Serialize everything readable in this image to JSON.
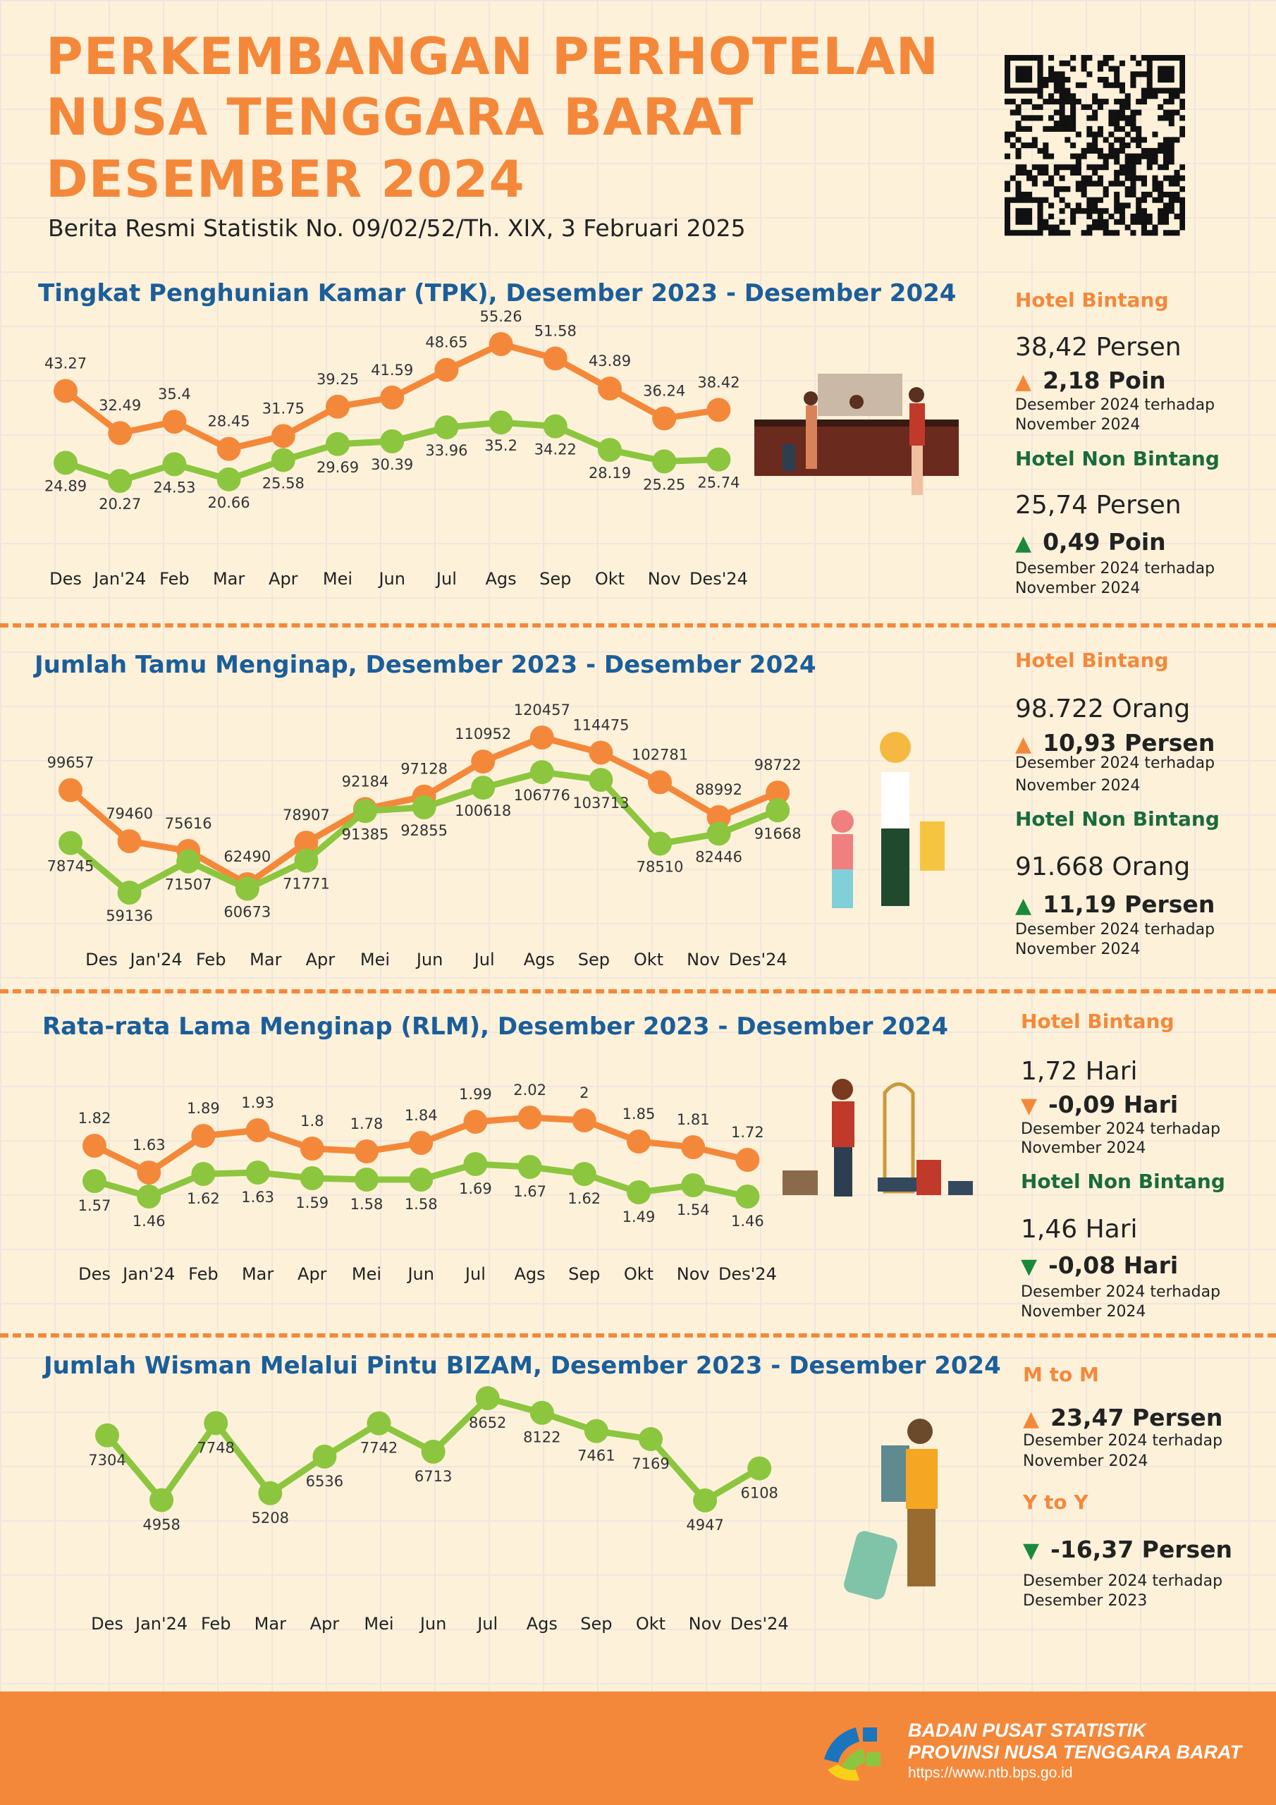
{
  "header": {
    "title_lines": [
      "PERKEMBANGAN PERHOTELAN",
      "NUSA TENGGARA BARAT",
      "DESEMBER 2024"
    ],
    "subtitle": "Berita Resmi Statistik No. 09/02/52/Th. XIX, 3 Februari 2025"
  },
  "colors": {
    "orange": "#f4883a",
    "green": "#8cc63f",
    "blue": "#1b5e9a",
    "dark_green": "#1a6b3a",
    "background": "#fdf1da"
  },
  "panels": {
    "tpk": {
      "a_label": "Hotel Bintang",
      "a_value": "38,42 Persen",
      "a_change": "2,18 Poin",
      "a_dir": "up",
      "a_desc1": "Desember 2024 terhadap",
      "a_desc2": "November 2024",
      "b_label": "Hotel Non Bintang",
      "b_value": "25,74 Persen",
      "b_change": "0,49 Poin",
      "b_dir": "up",
      "b_desc1": "Desember 2024 terhadap",
      "b_desc2": "November 2024"
    },
    "tamu": {
      "a_label": "Hotel Bintang",
      "a_value": "98.722 Orang",
      "a_change": "10,93 Persen",
      "a_dir": "up",
      "a_desc1": "Desember 2024 terhadap",
      "a_desc2": "November 2024",
      "b_label": "Hotel Non Bintang",
      "b_value": "91.668 Orang",
      "b_change": "11,19 Persen",
      "b_dir": "up",
      "b_desc1": "Desember 2024 terhadap",
      "b_desc2": "November 2024"
    },
    "rlm": {
      "a_label": "Hotel Bintang",
      "a_value": "1,72 Hari",
      "a_change": "-0,09 Hari",
      "a_dir": "down",
      "a_desc1": "Desember 2024 terhadap",
      "a_desc2": "November 2024",
      "b_label": "Hotel Non Bintang",
      "b_value": "1,46 Hari",
      "b_change": "-0,08 Hari",
      "b_dir": "down",
      "b_desc1": "Desember 2024 terhadap",
      "b_desc2": "November 2024"
    },
    "wisman": {
      "a_label": "M to M",
      "a_change": "23,47 Persen",
      "a_dir": "up",
      "a_desc1": "Desember 2024 terhadap",
      "a_desc2": "November 2024",
      "b_label": "Y to Y",
      "b_change": "-16,37  Persen",
      "b_dir": "down",
      "b_desc1": "Desember 2024 terhadap",
      "b_desc2": "Desember 2023"
    }
  },
  "triangles": {
    "up": "▲",
    "down": "▼"
  },
  "chart_data": [
    {
      "type": "line",
      "title": "Tingkat Penghunian Kamar (TPK), Desember 2023 - Desember 2024",
      "categories": [
        "Des",
        "Jan'24",
        "Feb",
        "Mar",
        "Apr",
        "Mei",
        "Jun",
        "Jul",
        "Ags",
        "Sep",
        "Okt",
        "Nov",
        "Des'24"
      ],
      "series": [
        {
          "color": "#f4883a",
          "values": [
            43.27,
            32.49,
            35.4,
            28.45,
            31.75,
            39.25,
            41.59,
            48.65,
            55.26,
            51.58,
            43.89,
            36.24,
            38.42
          ]
        },
        {
          "color": "#8cc63f",
          "values": [
            24.89,
            20.27,
            24.53,
            20.66,
            25.58,
            29.69,
            30.39,
            33.96,
            35.2,
            34.22,
            28.19,
            25.25,
            25.74
          ]
        }
      ]
    },
    {
      "type": "line",
      "title": "Jumlah Tamu Menginap, Desember 2023 - Desember 2024",
      "categories": [
        "Des",
        "Jan'24",
        "Feb",
        "Mar",
        "Apr",
        "Mei",
        "Jun",
        "Jul",
        "Ags",
        "Sep",
        "Okt",
        "Nov",
        "Des'24"
      ],
      "series": [
        {
          "color": "#f4883a",
          "values": [
            99657,
            79460,
            75616,
            62490,
            78907,
            92184,
            97128,
            110952,
            120457,
            114475,
            102781,
            88992,
            98722
          ]
        },
        {
          "color": "#8cc63f",
          "values": [
            78745,
            59136,
            71507,
            60673,
            71771,
            91385,
            92855,
            100618,
            106776,
            103713,
            78510,
            82446,
            91668
          ]
        }
      ]
    },
    {
      "type": "line",
      "title": "Rata-rata Lama Menginap (RLM), Desember 2023 - Desember 2024",
      "categories": [
        "Des",
        "Jan'24",
        "Feb",
        "Mar",
        "Apr",
        "Mei",
        "Jun",
        "Jul",
        "Ags",
        "Sep",
        "Okt",
        "Nov",
        "Des'24"
      ],
      "series": [
        {
          "color": "#f4883a",
          "values": [
            1.82,
            1.63,
            1.89,
            1.93,
            1.8,
            1.78,
            1.84,
            1.99,
            2.02,
            2,
            1.85,
            1.81,
            1.72
          ]
        },
        {
          "color": "#8cc63f",
          "values": [
            1.57,
            1.46,
            1.62,
            1.63,
            1.59,
            1.58,
            1.58,
            1.69,
            1.67,
            1.62,
            1.49,
            1.54,
            1.46
          ]
        }
      ]
    },
    {
      "type": "line",
      "title": "Jumlah Wisman Melalui Pintu BIZAM, Desember 2023 - Desember 2024",
      "categories": [
        "Des",
        "Jan'24",
        "Feb",
        "Mar",
        "Apr",
        "Mei",
        "Jun",
        "Jul",
        "Ags",
        "Sep",
        "Okt",
        "Nov",
        "Des'24"
      ],
      "series": [
        {
          "color": "#8cc63f",
          "values": [
            7304,
            4958,
            7748,
            5208,
            6536,
            7742,
            6713,
            8652,
            8122,
            7461,
            7169,
            4947,
            6108
          ]
        }
      ]
    }
  ],
  "footer": {
    "org1": "BADAN PUSAT STATISTIK",
    "org2": "PROVINSI NUSA TENGGARA BARAT",
    "url": "https://www.ntb.bps.go.id"
  }
}
